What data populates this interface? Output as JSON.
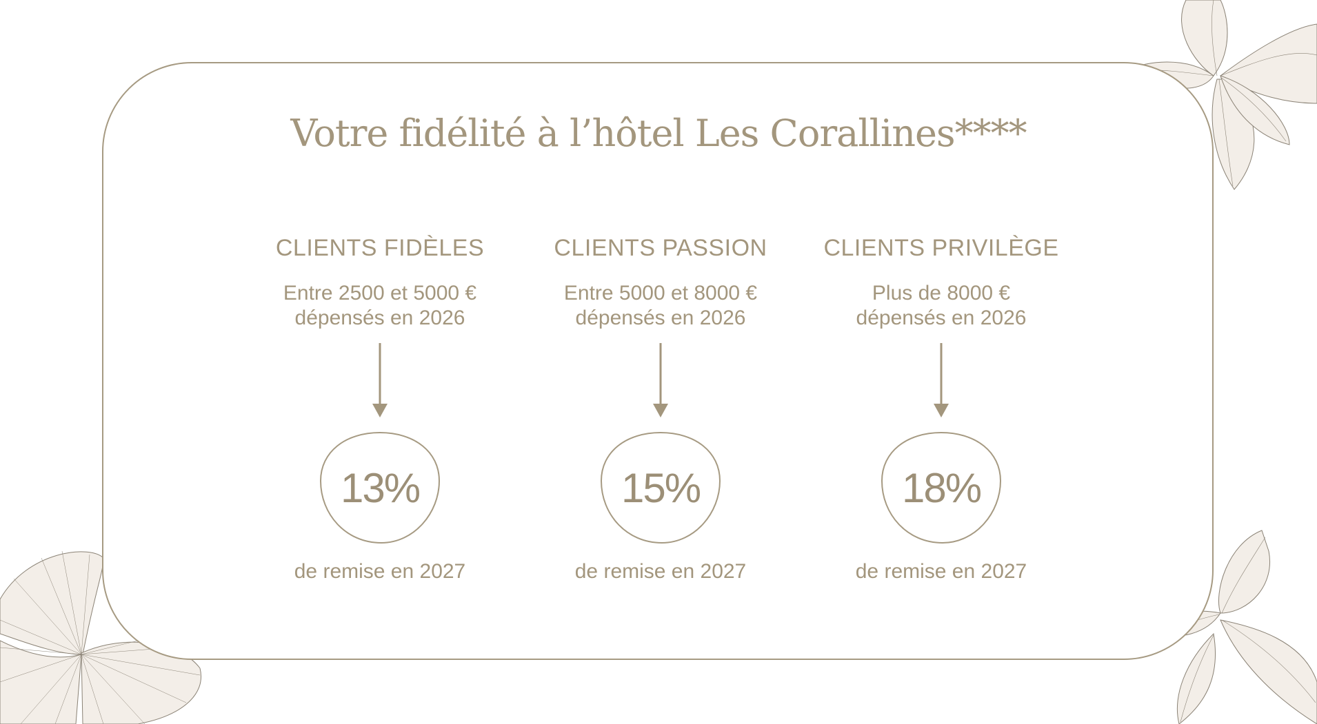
{
  "page": {
    "title": "Votre fidélité à l’hôtel Les Corallines****"
  },
  "colors": {
    "accent": "#a3967d",
    "border": "#a69a82",
    "decor_fill": "#f3eee8",
    "decor_stroke": "#8a8275"
  },
  "tiers": [
    {
      "name": "CLIENTS FIDÈLES",
      "desc_line1": "Entre 2500 et 5000 €",
      "desc_line2": "dépensés en 2026",
      "discount": "13%",
      "note": "de remise en 2027"
    },
    {
      "name": "CLIENTS PASSION",
      "desc_line1": "Entre 5000 et 8000 €",
      "desc_line2": "dépensés en 2026",
      "discount": "15%",
      "note": "de remise en 2027"
    },
    {
      "name": "CLIENTS PRIVILÈGE",
      "desc_line1": "Plus de 8000 €",
      "desc_line2": "dépensés en 2026",
      "discount": "18%",
      "note": "de remise en 2027"
    }
  ]
}
